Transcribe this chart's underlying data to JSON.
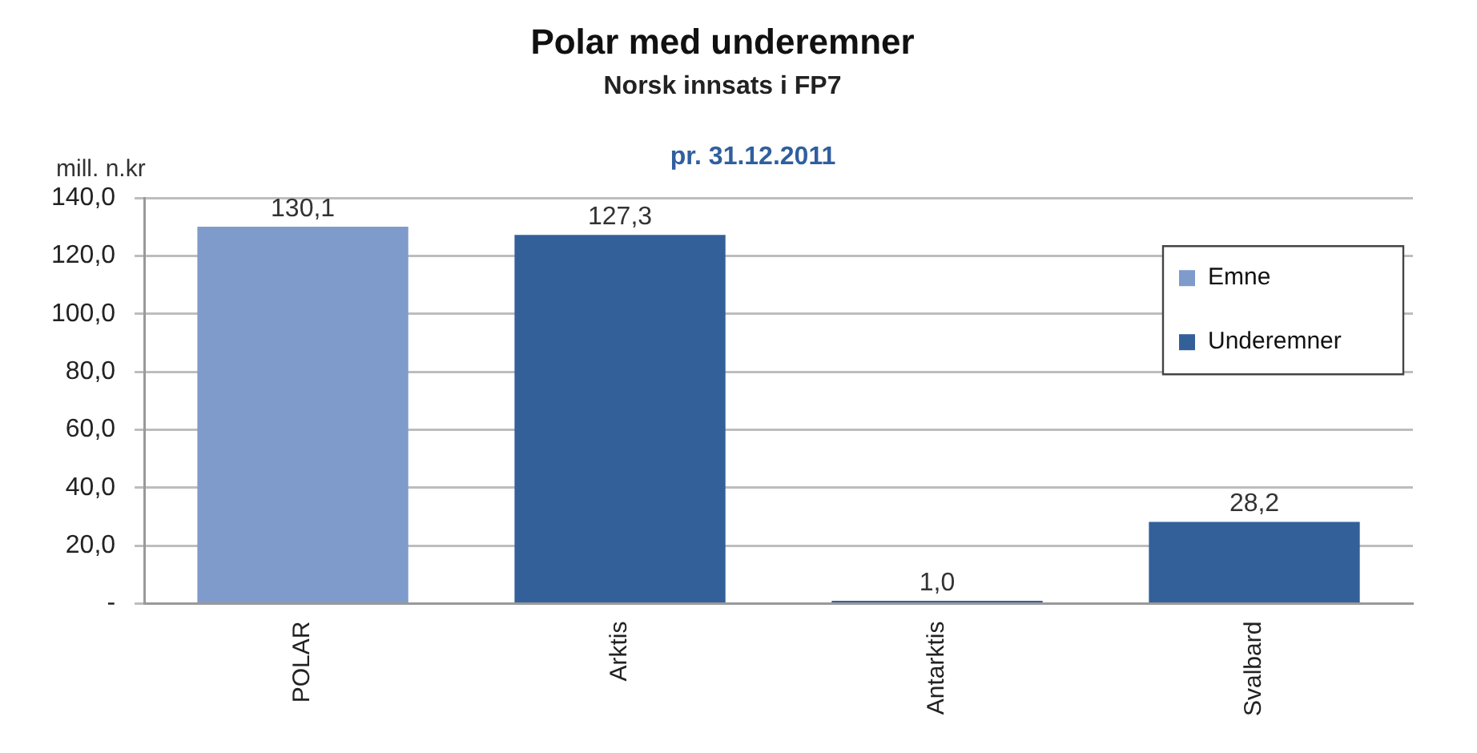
{
  "chart_data": {
    "type": "bar",
    "title": "Polar med underemner",
    "subtitle": "Norsk innsats i FP7",
    "annotations": [
      "pr. 31.12.2011"
    ],
    "ylabel": "mill. n.kr",
    "categories": [
      "POLAR",
      "Arktis",
      "Antarktis",
      "Svalbard"
    ],
    "stacked": true,
    "series": [
      {
        "name": "Emne",
        "color": "#7f9bcc",
        "values": [
          130.1,
          null,
          null,
          null
        ],
        "value_labels": [
          "130,1",
          null,
          null,
          null
        ]
      },
      {
        "name": "Underemner",
        "color": "#34609a",
        "values": [
          0,
          127.3,
          1.0,
          28.2
        ],
        "value_labels": [
          null,
          "127,3",
          "1,0",
          "28,2"
        ]
      }
    ],
    "ylim": [
      0,
      140
    ],
    "yticks": [
      {
        "value": 0,
        "label": "-"
      },
      {
        "value": 20,
        "label": "20,0"
      },
      {
        "value": 40,
        "label": "40,0"
      },
      {
        "value": 60,
        "label": "60,0"
      },
      {
        "value": 80,
        "label": "80,0"
      },
      {
        "value": 100,
        "label": "100,0"
      },
      {
        "value": 120,
        "label": "120,0"
      },
      {
        "value": 140,
        "label": "140,0"
      }
    ],
    "grid": "y",
    "legend": "right"
  }
}
